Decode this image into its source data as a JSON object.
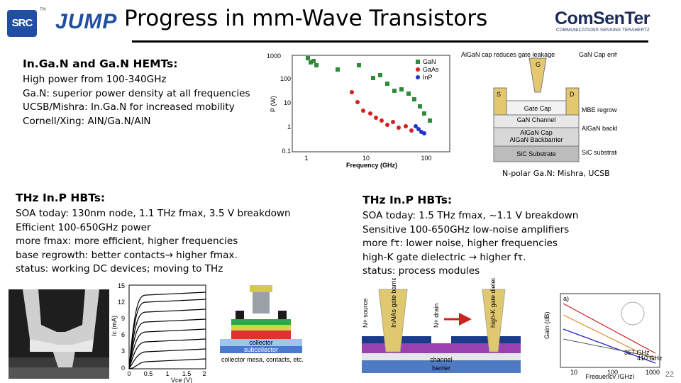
{
  "header": {
    "logo_src": "SRC",
    "logo_src_tm": "TM",
    "logo_jump": "JUMP",
    "title": "Progress in mm-Wave Transistors",
    "comsenter": "ComSenTer",
    "comsenter_sub": "COMMUNICATIONS SENSING TERAHERTZ"
  },
  "hemt": {
    "heading": "In.Ga.N and Ga.N HEMTs:",
    "lines": [
      "High power from 100-340GHz",
      "Ga.N: superior power density at all frequencies",
      "UCSB/Mishra: In.Ga.N for increased mobility",
      "Cornell/Xing: AlN/Ga.N/AlN"
    ],
    "caption": "N-polar Ga.N: Mishra, UCSB"
  },
  "hbt_left": {
    "heading": "THz In.P HBTs:",
    "lines": [
      "SOA today: 130nm node, 1.1 THz fmax, 3.5 V breakdown",
      "Efficient 100-650GHz power",
      "more fmax: more efficient, higher frequencies",
      "base regrowth: better contacts→ higher fmax.",
      "status: working DC devices; moving to THz"
    ]
  },
  "hbt_right": {
    "heading": "THz In.P HBTs:",
    "lines": [
      "SOA today: 1.5 THz fmax, ~1.1 V breakdown",
      "Sensitive 100-650GHz low-noise amplifiers",
      "more fτ: lower noise, higher frequencies",
      "high-K gate dielectric → higher fτ.",
      "status: process modules"
    ]
  },
  "power_chart": {
    "ylabel": "P (W)",
    "xlabel": "Frequency (GHz)",
    "y_ticks": [
      "1000",
      "100",
      "10",
      "1",
      "0.1"
    ],
    "x_ticks": [
      "1",
      "10",
      "100"
    ],
    "legend": [
      "GaN",
      "GaAs",
      "InP"
    ],
    "colors": {
      "GaN": "#2e8b3a",
      "GaAs": "#d42020",
      "InP": "#2233cc"
    }
  },
  "hemt_diagram": {
    "labels": [
      "Gate Cap",
      "GaN Channel",
      "AlGaN Cap",
      "AlGaN Backbarrier",
      "SiC Substrate",
      "S",
      "G",
      "D"
    ],
    "notes": [
      "AlGaN cap reduces gate leakage",
      "GaN Cap enhances access",
      "MBE regrowth ohmic contacts",
      "AlGaN backbarrier provides charge",
      "SiC substrate reduces thermal effects"
    ]
  },
  "iv_chart": {
    "ylabel": "Ic (mA)",
    "xlabel": "Vce (V)",
    "y_ticks": [
      "15",
      "12",
      "9",
      "6",
      "3",
      "0"
    ],
    "x_ticks": [
      "0",
      "0.5",
      "1",
      "1.5",
      "2"
    ]
  },
  "hbt_cross": {
    "labels": [
      "collector",
      "subcollector",
      "collector mesa, contacts, etc."
    ]
  },
  "hemt_cross": {
    "labels": [
      "N+ source",
      "InAlAs gate barrier",
      "N+ drain",
      "high-K gate dielectric",
      "channel",
      "barrier"
    ]
  },
  "ft_chart": {
    "xlabel": "Frequency (GHz)",
    "ylabel": "Gain (dB)",
    "x_ticks": [
      "10",
      "100",
      "1000"
    ],
    "annotations": [
      "a)",
      "357 GHz",
      "410 GHz"
    ]
  },
  "page_number": "22"
}
